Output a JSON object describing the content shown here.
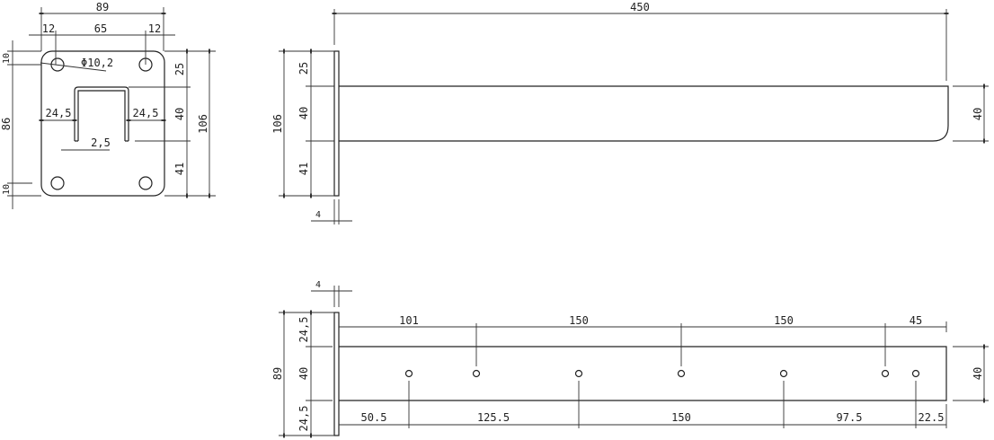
{
  "front_view": {
    "width_total": "89",
    "edge_left": "12",
    "hole_spacing": "65",
    "edge_right": "12",
    "hole_diameter": "Φ10,2",
    "slot_side_left": "24,5",
    "slot_side_right": "24,5",
    "slot_thickness": "2,5",
    "top_offset": "10",
    "hole_vertical_spacing": "86",
    "bottom_offset": "10",
    "seg_top": "25",
    "seg_mid": "40",
    "seg_bottom": "41",
    "height_total": "106"
  },
  "side_view": {
    "length": "450",
    "height_total": "106",
    "seg_top": "25",
    "seg_mid": "40",
    "seg_bottom": "41",
    "bar_height": "40",
    "plate_thickness": "4"
  },
  "top_view": {
    "plate_thickness": "4",
    "width_total": "89",
    "seg_top": "24,5",
    "seg_mid": "40",
    "seg_bottom": "24,5",
    "bar_width": "40",
    "upper_dims": [
      "101",
      "150",
      "150",
      "45"
    ],
    "lower_dims": [
      "50.5",
      "125.5",
      "150",
      "97.5",
      "22.5"
    ]
  }
}
